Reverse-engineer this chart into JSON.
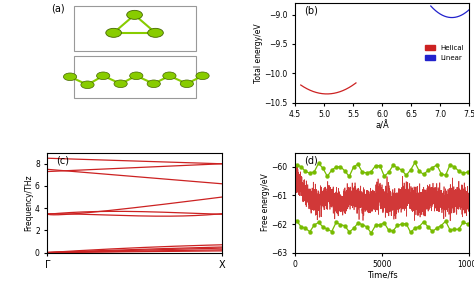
{
  "fig_width": 4.74,
  "fig_height": 2.87,
  "dpi": 100,
  "panel_b": {
    "label": "(b)",
    "xlabel": "a/Å",
    "ylabel": "Total energy/eV",
    "xlim": [
      4.5,
      7.5
    ],
    "ylim": [
      -10.5,
      -8.8
    ],
    "yticks": [
      -10.5,
      -10.0,
      -9.5,
      -9.0
    ],
    "helical_color": "#cc2222",
    "linear_color": "#2222cc",
    "legend_helical": "Helical",
    "legend_linear": "Linear"
  },
  "panel_c": {
    "label": "(c)",
    "ylabel": "Frequency/THz",
    "xlim": [
      0,
      1
    ],
    "ylim": [
      0,
      9
    ],
    "yticks": [
      0,
      2,
      4,
      6,
      8
    ],
    "xtick_labels": [
      "Γ",
      "X"
    ],
    "line_color": "#cc2222"
  },
  "panel_d": {
    "label": "(d)",
    "xlabel": "Time/fs",
    "ylabel": "Free energy/eV",
    "xlim": [
      0,
      10000
    ],
    "ylim": [
      -63,
      -59.5
    ],
    "yticks": [
      -63,
      -62,
      -61,
      -60
    ],
    "red_color": "#cc2222",
    "green_color": "#77bb00"
  },
  "atom_color": "#88cc00",
  "atom_edge": "#446600",
  "bond_color": "#88cc00"
}
